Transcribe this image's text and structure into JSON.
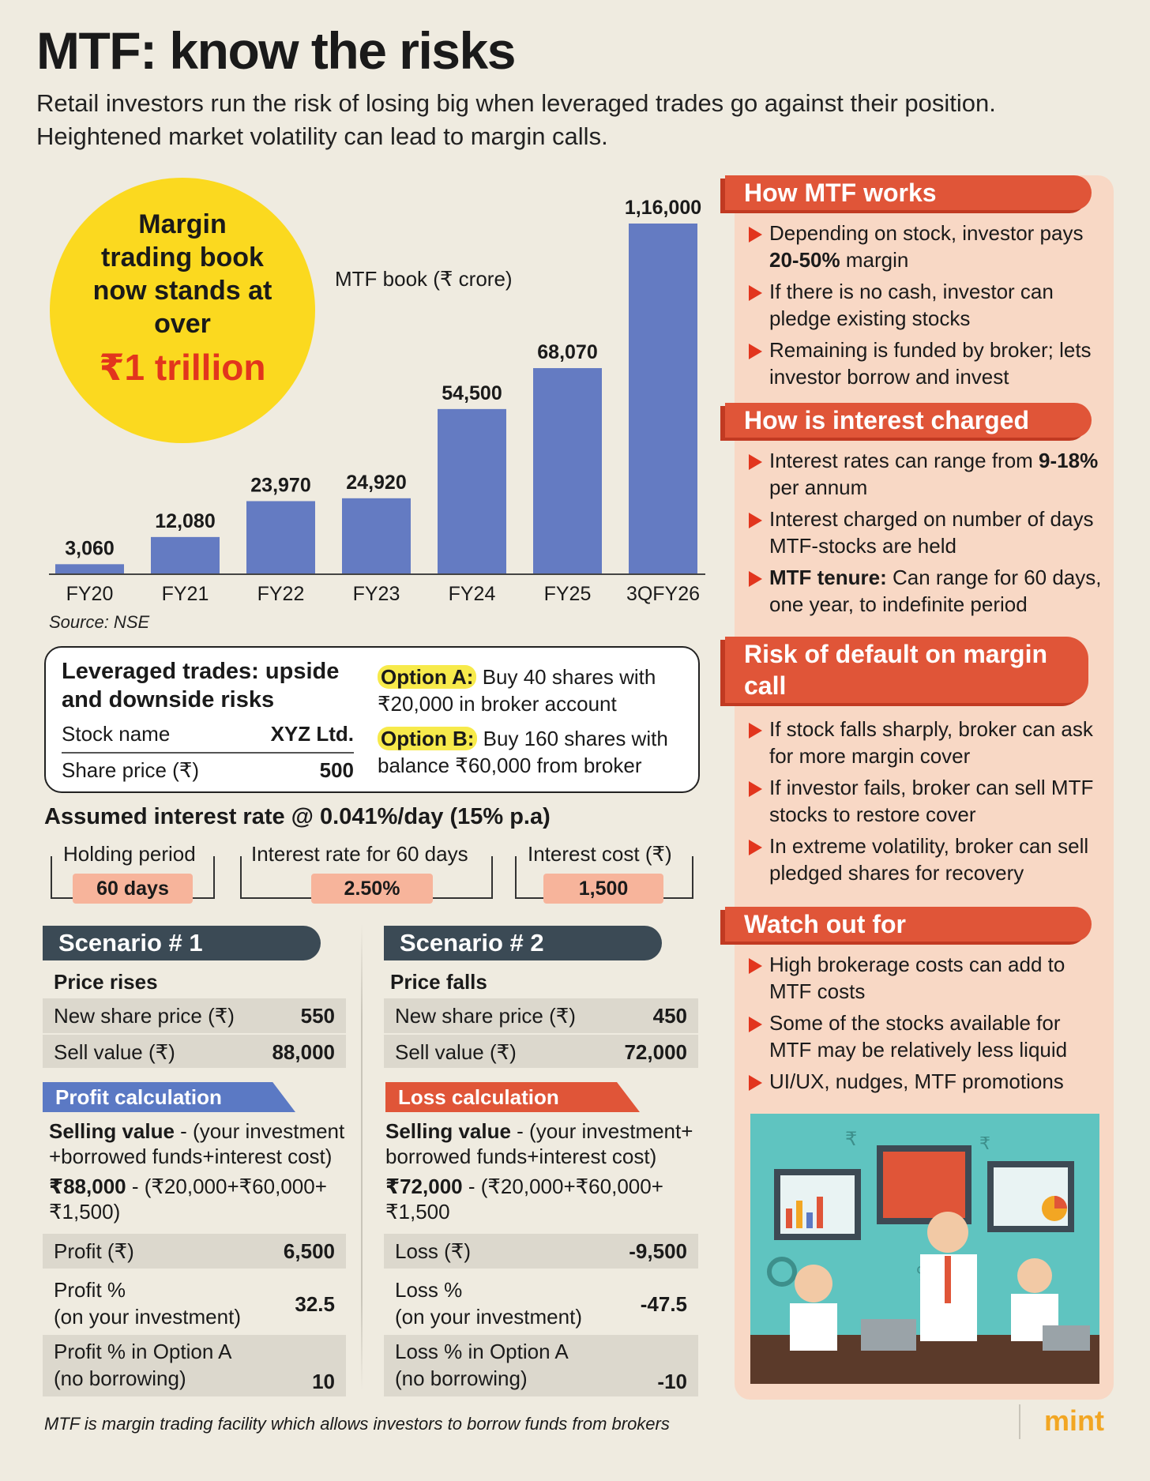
{
  "header": {
    "title": "MTF: know the risks",
    "subtitle": "Retail investors run the risk of losing big when leveraged trades go against their position. Heightened market volatility can lead to margin calls."
  },
  "callout": {
    "text_lines": [
      "Margin",
      "trading book",
      "now stands at",
      "over"
    ],
    "highlight": "₹1 trillion"
  },
  "chart_data": {
    "type": "bar",
    "title": "MTF book (₹ crore)",
    "categories": [
      "FY20",
      "FY21",
      "FY22",
      "FY23",
      "FY24",
      "FY25",
      "3QFY26"
    ],
    "values": [
      3060,
      12080,
      23970,
      24920,
      54500,
      68070,
      116000
    ],
    "data_labels": [
      "3,060",
      "12,080",
      "23,970",
      "24,920",
      "54,500",
      "68,070",
      "1,16,000"
    ],
    "ylim": [
      0,
      116000
    ],
    "bar_color": "#647bc2",
    "grid": false,
    "source": "Source: NSE"
  },
  "leveraged": {
    "title": "Leveraged trades: upside and downside risks",
    "stock_label": "Stock name",
    "stock_value": "XYZ Ltd.",
    "price_label": "Share price (₹)",
    "price_value": "500",
    "option_a_label": "Option A:",
    "option_a_text": "Buy 40 shares with ₹20,000 in broker account",
    "option_b_label": "Option B:",
    "option_b_text": "Buy 160 shares with balance ₹60,000 from broker"
  },
  "interest": {
    "assumed": "Assumed interest rate @ 0.041%/day (15% p.a)",
    "holding_label": "Holding period",
    "holding_value": "60 days",
    "rate_label": "Interest rate for 60 days",
    "rate_value": "2.50%",
    "cost_label": "Interest cost (₹)",
    "cost_value": "1,500"
  },
  "scenario1": {
    "heading": "Scenario # 1",
    "sub": "Price rises",
    "new_price_label": "New share price (₹)",
    "new_price_value": "550",
    "sell_label": "Sell value (₹)",
    "sell_value": "88,000",
    "calc_head": "Profit calculation",
    "formula_bold": "Selling value",
    "formula_rest": " - (your investment +borrowed funds+interest cost)",
    "calc_bold": "₹88,000",
    "calc_rest": " - (₹20,000+₹60,000+ ₹1,500)",
    "profit_label": "Profit (₹)",
    "profit_value": "6,500",
    "pct_label_1": "Profit %",
    "pct_label_2": "(on your investment)",
    "pct_value": "32.5",
    "opt_label_1": "Profit % in Option A",
    "opt_label_2": "(no borrowing)",
    "opt_value": "10"
  },
  "scenario2": {
    "heading": "Scenario # 2",
    "sub": "Price falls",
    "new_price_label": "New share price (₹)",
    "new_price_value": "450",
    "sell_label": "Sell value (₹)",
    "sell_value": "72,000",
    "calc_head": "Loss calculation",
    "formula_bold": "Selling value",
    "formula_rest": " - (your investment+ borrowed funds+interest cost)",
    "calc_bold": "₹72,000",
    "calc_rest": " - (₹20,000+₹60,000+ ₹1,500",
    "loss_label": "Loss (₹)",
    "loss_value": "-9,500",
    "pct_label_1": "Loss %",
    "pct_label_2": "(on your investment)",
    "pct_value": "-47.5",
    "opt_label_1": "Loss % in Option A",
    "opt_label_2": "(no borrowing)",
    "opt_value": "-10"
  },
  "sidebar": {
    "how_works": {
      "heading": "How MTF works",
      "b1_a": "Depending on stock, investor pays ",
      "b1_b": "20-50%",
      "b1_c": " margin",
      "b2": "If there is no cash, investor can pledge existing stocks",
      "b3": "Remaining is funded by broker; lets investor borrow and invest"
    },
    "interest": {
      "heading": "How is interest charged",
      "b1_a": "Interest rates can range from ",
      "b1_b": "9-18%",
      "b1_c": " per annum",
      "b2": "Interest charged on number of days MTF-stocks are held",
      "b3_b": "MTF tenure:",
      "b3_c": " Can range for 60 days, one year, to indefinite period"
    },
    "default": {
      "heading": "Risk of default on margin call",
      "b1": "If stock falls sharply, broker can ask for more margin cover",
      "b2": "If investor fails, broker can sell MTF stocks to restore cover",
      "b3": "In extreme volatility, broker can sell pledged shares for recovery"
    },
    "watch": {
      "heading": "Watch out for",
      "b1": "High brokerage costs can add to MTF costs",
      "b2": "Some of the stocks available for MTF may be relatively less liquid",
      "b3": "UI/UX, nudges, MTF promotions"
    }
  },
  "footer": {
    "note": "MTF is margin trading facility which allows investors to borrow funds from brokers",
    "brand": "mint"
  },
  "colors": {
    "bar": "#647bc2",
    "accent_red": "#e2351d",
    "section_head": "#e05538",
    "panel": "#f8d8c5",
    "callout": "#fbd91f",
    "profit_head": "#5b79c4",
    "loss_head": "#e05538"
  }
}
